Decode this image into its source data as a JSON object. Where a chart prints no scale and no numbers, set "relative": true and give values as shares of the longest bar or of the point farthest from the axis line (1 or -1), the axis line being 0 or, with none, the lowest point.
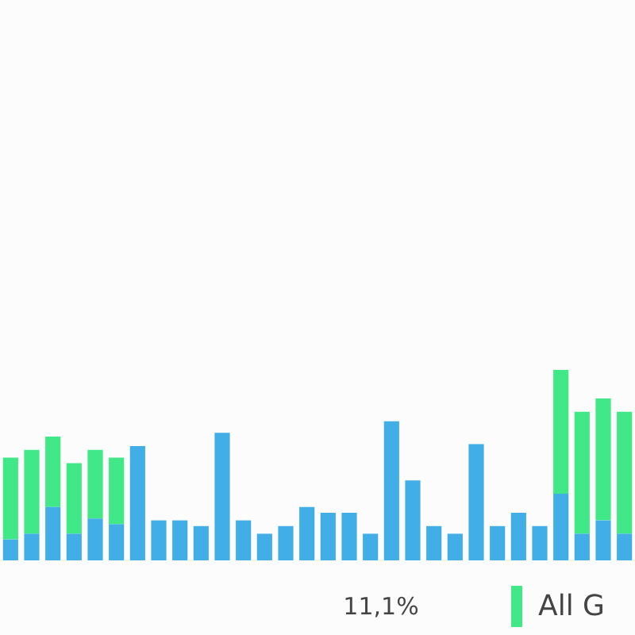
{
  "chart_data": {
    "type": "bar",
    "stacked": true,
    "relative": true,
    "legend": "bottom",
    "annotations": [
      "11,1%"
    ],
    "categories": [
      null,
      null,
      null,
      null,
      null,
      null,
      null,
      null,
      null,
      null,
      null,
      null,
      null,
      null,
      null,
      null,
      null,
      null,
      null,
      null,
      null,
      null,
      null,
      null,
      null,
      null,
      null,
      null,
      null,
      null
    ],
    "series": [
      {
        "color": "#41aee8",
        "values": [
          0.11,
          0.14,
          0.28,
          0.14,
          0.22,
          0.19,
          0.6,
          0.21,
          0.21,
          0.18,
          0.67,
          0.21,
          0.14,
          0.18,
          0.28,
          0.25,
          0.25,
          0.14,
          0.73,
          0.42,
          0.18,
          0.14,
          0.61,
          0.18,
          0.25,
          0.18,
          0.35,
          0.14,
          0.21,
          0.14
        ]
      },
      {
        "name": "All G",
        "color": "#41e887",
        "values": [
          0.43,
          0.44,
          0.37,
          0.37,
          0.36,
          0.35,
          null,
          null,
          null,
          null,
          null,
          null,
          null,
          null,
          null,
          null,
          null,
          null,
          null,
          null,
          null,
          null,
          null,
          null,
          null,
          null,
          0.65,
          0.64,
          0.64,
          0.64
        ]
      }
    ]
  }
}
